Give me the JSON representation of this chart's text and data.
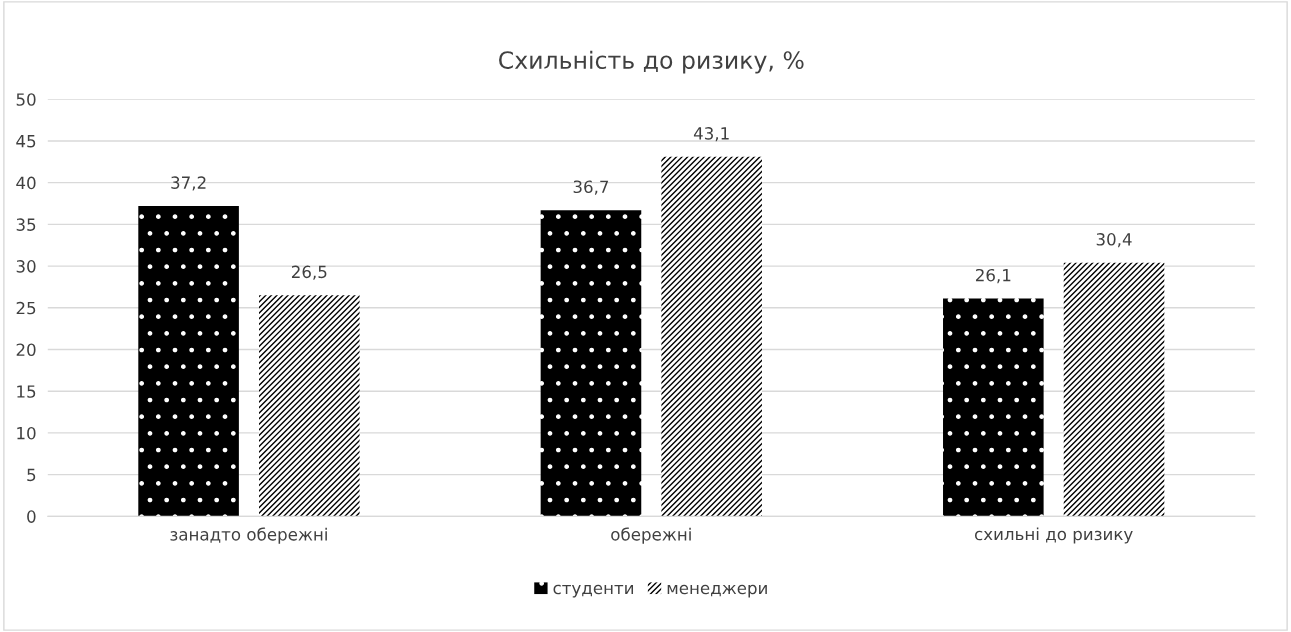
{
  "chart_data": {
    "type": "bar",
    "title": "Схильність до ризику, %",
    "categories": [
      "занадто обережні",
      "обережні",
      "схильні до ризику"
    ],
    "series": [
      {
        "name": "студенти",
        "color": "#000000",
        "values": [
          37.2,
          36.7,
          26.1
        ],
        "value_labels": [
          "37,2",
          "36,7",
          "26,1"
        ]
      },
      {
        "name": "менеджери",
        "color": "#000000",
        "values": [
          26.5,
          43.1,
          30.4
        ],
        "value_labels": [
          "26,5",
          "43,1",
          "30,4"
        ]
      }
    ],
    "ylim": [
      0,
      50
    ],
    "yticks": [
      0,
      5,
      10,
      15,
      20,
      25,
      30,
      35,
      40,
      45,
      50
    ],
    "grid": "y",
    "legend": "bottom"
  }
}
